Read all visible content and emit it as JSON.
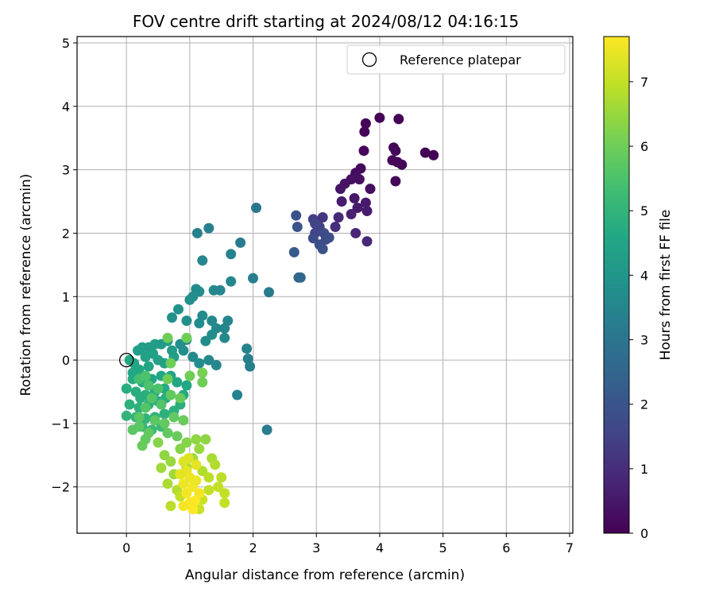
{
  "chart_data": {
    "type": "scatter",
    "title": "FOV centre drift starting at 2024/08/12 04:16:15",
    "xlabel": "Angular distance from reference (arcmin)",
    "ylabel": "Rotation from reference (arcmin)",
    "xlim": [
      -0.78,
      7.05
    ],
    "ylim": [
      -2.73,
      5.1
    ],
    "x_ticks": [
      0,
      1,
      2,
      3,
      4,
      5,
      6,
      7
    ],
    "y_ticks": [
      -2,
      -1,
      0,
      1,
      2,
      3,
      4,
      5
    ],
    "grid": true,
    "legend": {
      "placement": "upper-right",
      "entries": [
        "Reference platepar"
      ]
    },
    "reference_point": {
      "x": 0,
      "y": 0,
      "label": "Reference platepar"
    },
    "colorbar": {
      "label": "Hours from first FF file",
      "range": [
        0,
        7.7
      ],
      "ticks": [
        0,
        1,
        2,
        3,
        4,
        5,
        6,
        7
      ],
      "colormap": "viridis"
    },
    "points": [
      [
        4.0,
        3.82,
        0.05
      ],
      [
        4.3,
        3.8,
        0.05
      ],
      [
        3.78,
        3.73,
        0.1
      ],
      [
        3.76,
        3.6,
        0.12
      ],
      [
        4.22,
        3.35,
        0.1
      ],
      [
        4.25,
        3.3,
        0.12
      ],
      [
        4.2,
        3.15,
        0.1
      ],
      [
        4.35,
        3.08,
        0.08
      ],
      [
        4.28,
        3.12,
        0.12
      ],
      [
        4.72,
        3.27,
        0.02
      ],
      [
        4.85,
        3.23,
        0.03
      ],
      [
        4.25,
        2.82,
        0.1
      ],
      [
        3.75,
        3.3,
        0.15
      ],
      [
        3.7,
        3.02,
        0.2
      ],
      [
        3.62,
        2.95,
        0.25
      ],
      [
        3.55,
        2.85,
        0.3
      ],
      [
        3.68,
        2.85,
        0.3
      ],
      [
        3.45,
        2.78,
        0.4
      ],
      [
        3.38,
        2.7,
        0.45
      ],
      [
        3.85,
        2.7,
        0.3
      ],
      [
        3.6,
        2.55,
        0.5
      ],
      [
        3.78,
        2.48,
        0.55
      ],
      [
        3.4,
        2.5,
        0.6
      ],
      [
        3.65,
        2.4,
        0.55
      ],
      [
        3.8,
        2.35,
        0.6
      ],
      [
        3.55,
        2.3,
        0.7
      ],
      [
        3.35,
        2.25,
        0.9
      ],
      [
        3.62,
        2.0,
        0.8
      ],
      [
        3.8,
        1.87,
        0.85
      ],
      [
        3.3,
        2.1,
        1.0
      ],
      [
        3.1,
        2.25,
        1.2
      ],
      [
        2.95,
        2.22,
        1.4
      ],
      [
        3.05,
        2.1,
        1.5
      ],
      [
        2.98,
        2.0,
        1.6
      ],
      [
        3.12,
        2.0,
        1.7
      ],
      [
        2.95,
        1.92,
        1.75
      ],
      [
        3.05,
        1.82,
        1.8
      ],
      [
        3.15,
        1.9,
        1.7
      ],
      [
        2.98,
        2.15,
        1.55
      ],
      [
        3.1,
        1.75,
        1.9
      ],
      [
        3.2,
        1.93,
        1.85
      ],
      [
        2.68,
        2.28,
        2.0
      ],
      [
        2.7,
        2.1,
        2.0
      ],
      [
        2.65,
        1.7,
        2.2
      ],
      [
        2.72,
        1.3,
        2.5
      ],
      [
        2.75,
        1.3,
        2.55
      ],
      [
        2.05,
        2.4,
        3.0
      ],
      [
        1.3,
        2.08,
        3.3
      ],
      [
        1.12,
        2.0,
        3.35
      ],
      [
        1.8,
        1.85,
        3.2
      ],
      [
        1.65,
        1.67,
        3.4
      ],
      [
        1.2,
        1.57,
        3.5
      ],
      [
        1.65,
        1.24,
        3.5
      ],
      [
        2.0,
        1.29,
        3.3
      ],
      [
        2.25,
        1.07,
        3.2
      ],
      [
        1.1,
        1.12,
        3.7
      ],
      [
        1.15,
        1.08,
        3.7
      ],
      [
        1.38,
        1.1,
        3.6
      ],
      [
        1.48,
        1.1,
        3.5
      ],
      [
        1.0,
        0.95,
        3.8
      ],
      [
        1.05,
        1.0,
        3.8
      ],
      [
        0.82,
        0.8,
        3.9
      ],
      [
        0.72,
        0.67,
        3.9
      ],
      [
        1.2,
        0.7,
        3.7
      ],
      [
        1.35,
        0.62,
        3.6
      ],
      [
        1.6,
        0.62,
        3.5
      ],
      [
        1.42,
        0.5,
        3.6
      ],
      [
        1.55,
        0.5,
        3.5
      ],
      [
        1.35,
        0.4,
        3.7
      ],
      [
        1.25,
        0.3,
        3.7
      ],
      [
        1.55,
        0.35,
        3.6
      ],
      [
        1.15,
        0.58,
        3.7
      ],
      [
        0.95,
        0.62,
        3.8
      ],
      [
        1.9,
        0.18,
        3.4
      ],
      [
        1.92,
        0.02,
        3.3
      ],
      [
        1.95,
        -0.1,
        3.3
      ],
      [
        1.42,
        -0.08,
        3.5
      ],
      [
        1.75,
        -0.55,
        3.4
      ],
      [
        2.22,
        -1.1,
        3.2
      ],
      [
        1.3,
        0.0,
        3.6
      ],
      [
        1.05,
        0.05,
        3.6
      ],
      [
        1.15,
        -0.05,
        3.7
      ],
      [
        0.85,
        0.25,
        3.8
      ],
      [
        0.9,
        0.15,
        3.8
      ],
      [
        0.95,
        0.32,
        3.7
      ],
      [
        0.18,
        0.15,
        4.3
      ],
      [
        0.25,
        0.2,
        4.3
      ],
      [
        0.35,
        0.2,
        4.3
      ],
      [
        0.45,
        0.25,
        4.3
      ],
      [
        0.55,
        0.25,
        4.2
      ],
      [
        0.65,
        0.3,
        4.2
      ],
      [
        0.72,
        0.15,
        4.2
      ],
      [
        0.3,
        0.05,
        4.4
      ],
      [
        0.12,
        -0.05,
        4.5
      ],
      [
        0.05,
        0.0,
        4.6
      ],
      [
        0.2,
        -0.15,
        4.6
      ],
      [
        0.35,
        -0.1,
        4.5
      ],
      [
        0.5,
        0.0,
        4.4
      ],
      [
        0.6,
        -0.05,
        4.4
      ],
      [
        0.75,
        0.05,
        4.3
      ],
      [
        0.1,
        -0.3,
        4.7
      ],
      [
        0.25,
        -0.35,
        4.7
      ],
      [
        0.4,
        -0.3,
        4.6
      ],
      [
        0.55,
        -0.25,
        4.6
      ],
      [
        0.7,
        -0.25,
        4.5
      ],
      [
        0.0,
        -0.45,
        4.8
      ],
      [
        0.15,
        -0.5,
        4.8
      ],
      [
        0.3,
        -0.55,
        4.8
      ],
      [
        0.45,
        -0.5,
        4.7
      ],
      [
        0.6,
        -0.45,
        4.7
      ],
      [
        0.05,
        -0.7,
        4.9
      ],
      [
        0.2,
        -0.75,
        4.9
      ],
      [
        0.35,
        -0.7,
        4.9
      ],
      [
        0.5,
        -0.65,
        4.8
      ],
      [
        0.0,
        -0.88,
        5.0
      ],
      [
        0.15,
        -0.9,
        5.0
      ],
      [
        0.3,
        -0.92,
        5.0
      ],
      [
        0.45,
        -0.9,
        5.0
      ],
      [
        0.6,
        -0.85,
        4.9
      ],
      [
        0.75,
        -0.8,
        4.9
      ],
      [
        0.85,
        -0.7,
        4.8
      ],
      [
        0.9,
        -0.55,
        4.7
      ],
      [
        0.95,
        -0.4,
        4.6
      ],
      [
        0.8,
        -0.35,
        4.6
      ],
      [
        0.25,
        -1.05,
        5.1
      ],
      [
        0.4,
        -1.1,
        5.2
      ],
      [
        0.55,
        -1.05,
        5.2
      ],
      [
        0.1,
        -0.2,
        4.6
      ],
      [
        0.42,
        0.1,
        4.4
      ],
      [
        0.22,
        -0.6,
        4.8
      ],
      [
        0.62,
        -0.6,
        4.8
      ],
      [
        0.2,
        -0.3,
        5.4
      ],
      [
        0.35,
        -0.4,
        5.5
      ],
      [
        0.5,
        -0.45,
        5.5
      ],
      [
        0.4,
        -0.6,
        5.6
      ],
      [
        0.55,
        -0.7,
        5.6
      ],
      [
        0.3,
        -0.75,
        5.6
      ],
      [
        0.2,
        -0.9,
        5.7
      ],
      [
        0.45,
        -0.95,
        5.7
      ],
      [
        0.6,
        -1.0,
        5.8
      ],
      [
        0.35,
        -1.15,
        5.8
      ],
      [
        0.3,
        -1.25,
        5.8
      ],
      [
        0.65,
        -1.15,
        5.8
      ],
      [
        0.8,
        -1.2,
        5.9
      ],
      [
        0.2,
        -1.05,
        5.7
      ],
      [
        0.1,
        -1.1,
        5.7
      ],
      [
        0.75,
        -0.9,
        5.8
      ],
      [
        0.9,
        -0.95,
        5.9
      ],
      [
        0.85,
        -0.6,
        5.9
      ],
      [
        0.7,
        -0.55,
        5.8
      ],
      [
        0.95,
        0.35,
        6.0
      ],
      [
        0.65,
        0.35,
        6.0
      ],
      [
        0.65,
        -0.3,
        6.0
      ],
      [
        1.0,
        -0.25,
        6.0
      ],
      [
        1.2,
        -0.2,
        6.1
      ],
      [
        0.7,
        -0.05,
        6.0
      ],
      [
        1.2,
        -0.35,
        6.0
      ],
      [
        0.3,
        -0.25,
        5.5
      ],
      [
        0.25,
        -1.35,
        5.9
      ],
      [
        0.5,
        -1.3,
        6.3
      ],
      [
        0.6,
        -1.5,
        6.4
      ],
      [
        0.7,
        -1.6,
        6.5
      ],
      [
        0.55,
        -1.7,
        6.6
      ],
      [
        0.75,
        -1.8,
        6.6
      ],
      [
        0.65,
        -1.95,
        6.7
      ],
      [
        0.8,
        -2.05,
        6.8
      ],
      [
        0.7,
        -2.3,
        6.9
      ],
      [
        0.85,
        -1.4,
        6.3
      ],
      [
        0.95,
        -1.3,
        6.3
      ],
      [
        1.1,
        -1.25,
        6.4
      ],
      [
        1.25,
        -1.25,
        6.4
      ],
      [
        1.15,
        -1.4,
        6.5
      ],
      [
        1.05,
        -1.55,
        6.6
      ],
      [
        0.95,
        -1.7,
        6.7
      ],
      [
        1.2,
        -1.75,
        6.8
      ],
      [
        1.35,
        -1.55,
        6.7
      ],
      [
        1.4,
        -1.65,
        6.8
      ],
      [
        1.3,
        -1.85,
        6.9
      ],
      [
        1.5,
        -1.85,
        6.9
      ],
      [
        1.45,
        -2.0,
        7.0
      ],
      [
        1.55,
        -2.1,
        7.0
      ],
      [
        1.55,
        -2.25,
        7.0
      ],
      [
        1.3,
        -2.05,
        7.0
      ],
      [
        1.2,
        -2.2,
        7.1
      ],
      [
        1.15,
        -2.35,
        7.1
      ],
      [
        0.85,
        -2.15,
        7.0
      ],
      [
        0.9,
        -1.6,
        7.3
      ],
      [
        0.95,
        -1.75,
        7.4
      ],
      [
        1.0,
        -1.85,
        7.5
      ],
      [
        0.9,
        -1.95,
        7.5
      ],
      [
        1.05,
        -2.0,
        7.6
      ],
      [
        1.1,
        -1.65,
        7.4
      ],
      [
        1.1,
        -1.9,
        7.5
      ],
      [
        0.95,
        -2.1,
        7.6
      ],
      [
        1.0,
        -2.25,
        7.7
      ],
      [
        1.05,
        -2.35,
        7.7
      ],
      [
        0.9,
        -2.3,
        7.6
      ],
      [
        1.15,
        -2.1,
        7.6
      ],
      [
        0.98,
        -1.55,
        7.3
      ],
      [
        0.85,
        -1.8,
        7.4
      ],
      [
        1.08,
        -2.22,
        7.7
      ]
    ]
  }
}
